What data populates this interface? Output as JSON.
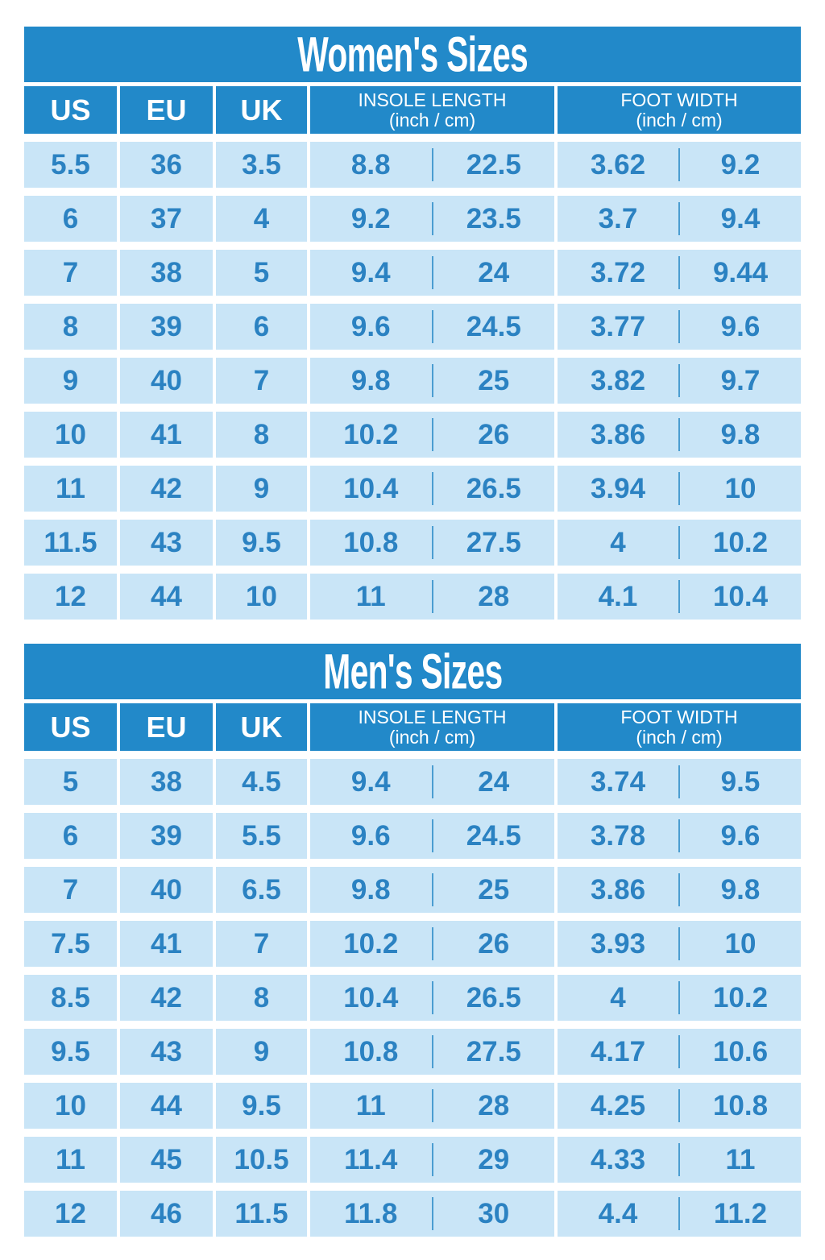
{
  "colors": {
    "blue": "#2289c9",
    "cell_bg": "#c9e5f7",
    "cell_text": "#2b82c2",
    "divider": "#4b9dd1",
    "page_bg": "#ffffff",
    "header_text": "#ffffff"
  },
  "chart_data": [
    {
      "type": "table",
      "title": "Women's Sizes",
      "column_headers": {
        "us": "US",
        "eu": "EU",
        "uk": "UK",
        "insole": {
          "label": "INSOLE LENGTH",
          "unit": "(inch / cm)"
        },
        "foot_width": {
          "label": "FOOT WIDTH",
          "unit": "(inch / cm)"
        }
      },
      "rows": [
        {
          "us": "5.5",
          "eu": "36",
          "uk": "3.5",
          "insole_inch": "8.8",
          "insole_cm": "22.5",
          "width_inch": "3.62",
          "width_cm": "9.2"
        },
        {
          "us": "6",
          "eu": "37",
          "uk": "4",
          "insole_inch": "9.2",
          "insole_cm": "23.5",
          "width_inch": "3.7",
          "width_cm": "9.4"
        },
        {
          "us": "7",
          "eu": "38",
          "uk": "5",
          "insole_inch": "9.4",
          "insole_cm": "24",
          "width_inch": "3.72",
          "width_cm": "9.44"
        },
        {
          "us": "8",
          "eu": "39",
          "uk": "6",
          "insole_inch": "9.6",
          "insole_cm": "24.5",
          "width_inch": "3.77",
          "width_cm": "9.6"
        },
        {
          "us": "9",
          "eu": "40",
          "uk": "7",
          "insole_inch": "9.8",
          "insole_cm": "25",
          "width_inch": "3.82",
          "width_cm": "9.7"
        },
        {
          "us": "10",
          "eu": "41",
          "uk": "8",
          "insole_inch": "10.2",
          "insole_cm": "26",
          "width_inch": "3.86",
          "width_cm": "9.8"
        },
        {
          "us": "11",
          "eu": "42",
          "uk": "9",
          "insole_inch": "10.4",
          "insole_cm": "26.5",
          "width_inch": "3.94",
          "width_cm": "10"
        },
        {
          "us": "11.5",
          "eu": "43",
          "uk": "9.5",
          "insole_inch": "10.8",
          "insole_cm": "27.5",
          "width_inch": "4",
          "width_cm": "10.2"
        },
        {
          "us": "12",
          "eu": "44",
          "uk": "10",
          "insole_inch": "11",
          "insole_cm": "28",
          "width_inch": "4.1",
          "width_cm": "10.4"
        }
      ]
    },
    {
      "type": "table",
      "title": "Men's Sizes",
      "column_headers": {
        "us": "US",
        "eu": "EU",
        "uk": "UK",
        "insole": {
          "label": "INSOLE LENGTH",
          "unit": "(inch / cm)"
        },
        "foot_width": {
          "label": "FOOT WIDTH",
          "unit": "(inch / cm)"
        }
      },
      "rows": [
        {
          "us": "5",
          "eu": "38",
          "uk": "4.5",
          "insole_inch": "9.4",
          "insole_cm": "24",
          "width_inch": "3.74",
          "width_cm": "9.5"
        },
        {
          "us": "6",
          "eu": "39",
          "uk": "5.5",
          "insole_inch": "9.6",
          "insole_cm": "24.5",
          "width_inch": "3.78",
          "width_cm": "9.6"
        },
        {
          "us": "7",
          "eu": "40",
          "uk": "6.5",
          "insole_inch": "9.8",
          "insole_cm": "25",
          "width_inch": "3.86",
          "width_cm": "9.8"
        },
        {
          "us": "7.5",
          "eu": "41",
          "uk": "7",
          "insole_inch": "10.2",
          "insole_cm": "26",
          "width_inch": "3.93",
          "width_cm": "10"
        },
        {
          "us": "8.5",
          "eu": "42",
          "uk": "8",
          "insole_inch": "10.4",
          "insole_cm": "26.5",
          "width_inch": "4",
          "width_cm": "10.2"
        },
        {
          "us": "9.5",
          "eu": "43",
          "uk": "9",
          "insole_inch": "10.8",
          "insole_cm": "27.5",
          "width_inch": "4.17",
          "width_cm": "10.6"
        },
        {
          "us": "10",
          "eu": "44",
          "uk": "9.5",
          "insole_inch": "11",
          "insole_cm": "28",
          "width_inch": "4.25",
          "width_cm": "10.8"
        },
        {
          "us": "11",
          "eu": "45",
          "uk": "10.5",
          "insole_inch": "11.4",
          "insole_cm": "29",
          "width_inch": "4.33",
          "width_cm": "11"
        },
        {
          "us": "12",
          "eu": "46",
          "uk": "11.5",
          "insole_inch": "11.8",
          "insole_cm": "30",
          "width_inch": "4.4",
          "width_cm": "11.2"
        }
      ]
    }
  ]
}
